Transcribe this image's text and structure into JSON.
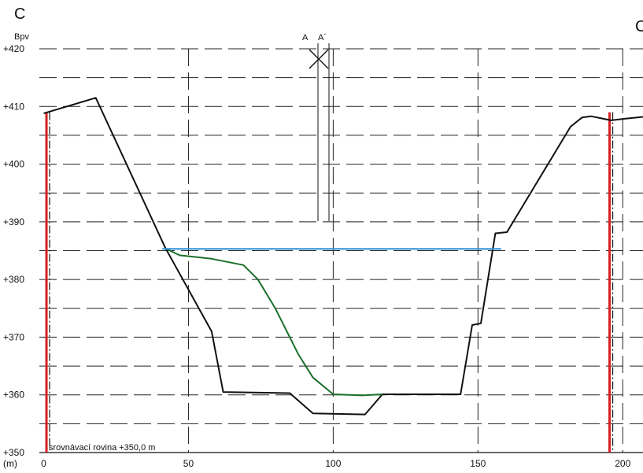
{
  "chart_data": {
    "type": "line",
    "section_label_left": "C",
    "section_label_right": "C",
    "y_axis_title": "Bpv",
    "x_axis_title": "(m)",
    "y_ticks": [
      {
        "value": 420,
        "label": "+420"
      },
      {
        "value": 410,
        "label": "+410"
      },
      {
        "value": 400,
        "label": "+400"
      },
      {
        "value": 390,
        "label": "+390"
      },
      {
        "value": 380,
        "label": "+380"
      },
      {
        "value": 370,
        "label": "+370"
      },
      {
        "value": 360,
        "label": "+360"
      },
      {
        "value": 350,
        "label": "+350"
      }
    ],
    "x_ticks": [
      {
        "value": 0,
        "label": "0"
      },
      {
        "value": 50,
        "label": "50"
      },
      {
        "value": 100,
        "label": "100"
      },
      {
        "value": 150,
        "label": "150"
      },
      {
        "value": 200,
        "label": "200"
      }
    ],
    "xlim": [
      -1.5,
      207
    ],
    "ylim": [
      350,
      420
    ],
    "grid": "dashed",
    "marker_labels": {
      "a": "A",
      "a_prime": "A´"
    },
    "reference_note": "srovnávací rovina +350,0 m",
    "series": [
      {
        "color": "#111111",
        "points": [
          [
            0,
            408.8
          ],
          [
            18,
            411.5
          ],
          [
            42,
            385.5
          ],
          [
            58,
            371
          ],
          [
            62,
            360.5
          ],
          [
            85,
            360.3
          ],
          [
            93,
            356.8
          ],
          [
            111,
            356.6
          ],
          [
            117,
            360.1
          ],
          [
            144,
            360.1
          ],
          [
            148,
            372.1
          ],
          [
            151,
            372.4
          ],
          [
            156,
            388
          ],
          [
            160,
            388.2
          ],
          [
            182,
            406.5
          ],
          [
            186,
            408.1
          ],
          [
            189,
            408.3
          ],
          [
            192,
            408.0
          ],
          [
            196,
            407.6
          ],
          [
            201,
            407.9
          ],
          [
            207,
            408.2
          ]
        ]
      },
      {
        "color": "#1a6f2a",
        "points": [
          [
            42,
            385.4
          ],
          [
            47,
            384.2
          ],
          [
            58,
            383.6
          ],
          [
            69,
            382.5
          ],
          [
            74,
            380
          ],
          [
            80,
            375
          ],
          [
            88,
            367
          ],
          [
            93,
            363
          ],
          [
            100,
            360.1
          ],
          [
            110,
            359.9
          ],
          [
            117,
            360.1
          ]
        ]
      },
      {
        "color": "#2f8fd8",
        "points": [
          [
            41,
            385.3
          ],
          [
            158,
            385.3
          ]
        ]
      }
    ],
    "vertical_markers": [
      {
        "x": 1.5,
        "color": "#d42020"
      },
      {
        "x": 196,
        "color": "#d42020"
      }
    ]
  }
}
